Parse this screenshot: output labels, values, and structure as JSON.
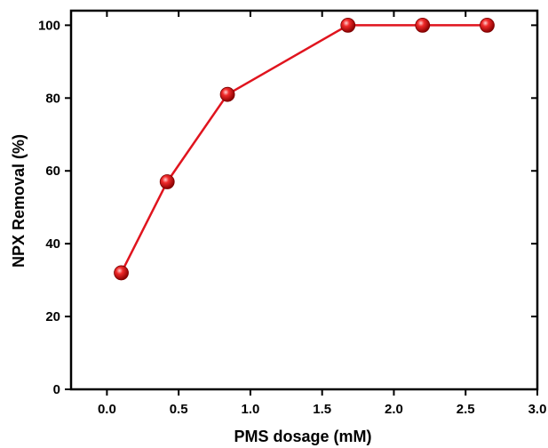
{
  "chart_data": {
    "type": "line",
    "title": "",
    "xlabel": "PMS dosage (mM)",
    "ylabel": "NPX Removal (%)",
    "xlim": [
      -0.25,
      3.0
    ],
    "ylim": [
      0,
      104
    ],
    "xticks": [
      0.0,
      0.5,
      1.0,
      1.5,
      2.0,
      2.5,
      3.0
    ],
    "xtick_labels": [
      "0.0",
      "0.5",
      "1.0",
      "1.5",
      "2.0",
      "2.5",
      "3.0"
    ],
    "yticks": [
      0,
      20,
      40,
      60,
      80,
      100
    ],
    "ytick_labels": [
      "0",
      "20",
      "40",
      "60",
      "80",
      "100"
    ],
    "grid": false,
    "legend": "none",
    "series": [
      {
        "x": [
          0.1,
          0.42,
          0.84,
          1.68,
          2.2,
          2.65
        ],
        "y": [
          32,
          57,
          81,
          100,
          100,
          100
        ],
        "color": "#e0141e",
        "marker": "sphere"
      }
    ]
  }
}
